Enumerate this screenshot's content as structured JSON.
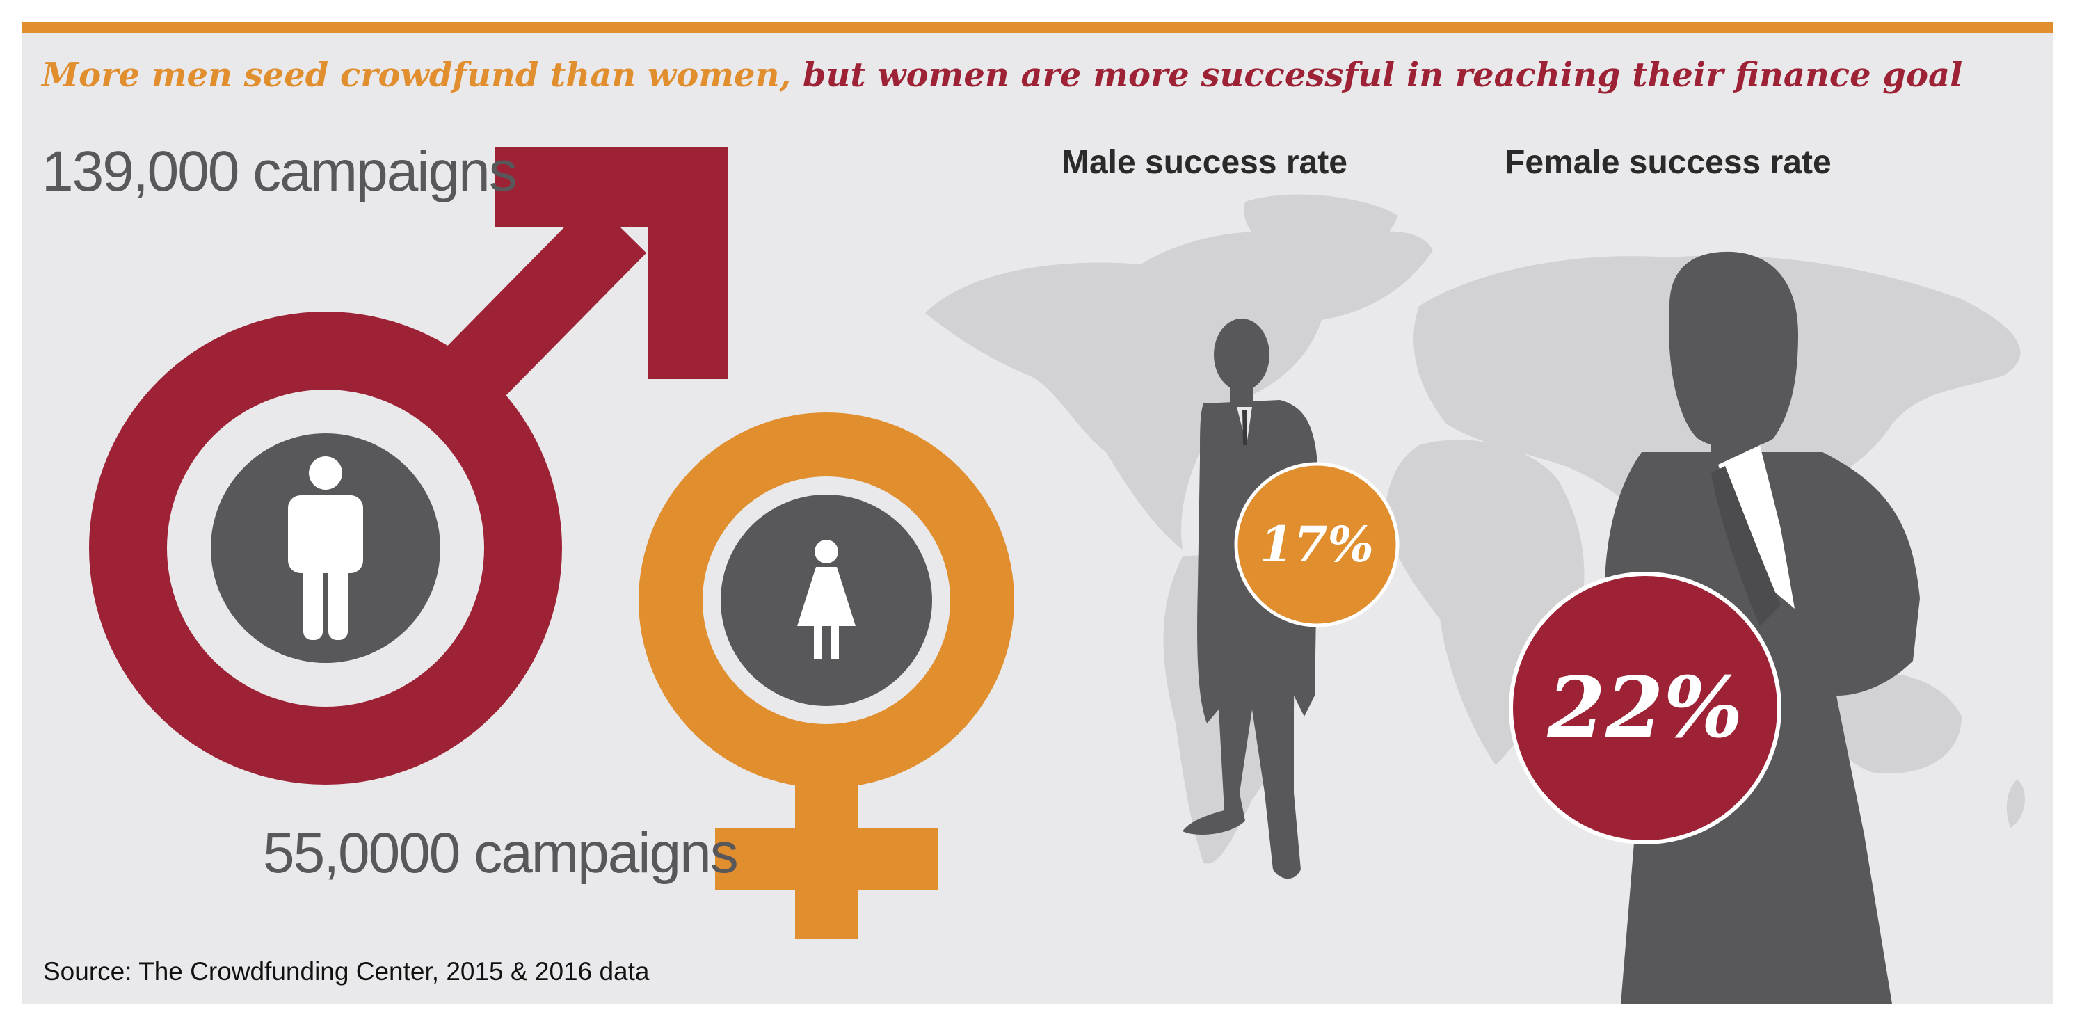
{
  "title": {
    "part1": "More men seed crowdfund than women,",
    "part2": "but women are more successful in reaching their finance goal"
  },
  "male": {
    "campaigns": "139,000 campaigns",
    "success_heading": "Male success rate",
    "success_rate": "17%"
  },
  "female": {
    "campaigns": "55,0000 campaigns",
    "success_heading": "Female success rate",
    "success_rate": "22%"
  },
  "source": "Source: The Crowdfunding Center, 2015 & 2016 data",
  "colors": {
    "male": "#9d2235",
    "female": "#e08e2e",
    "figure": "#58585a",
    "background": "#e9e9eb"
  },
  "icons": [
    "male-symbol-icon",
    "female-symbol-icon",
    "man-icon",
    "woman-icon",
    "world-map-icon",
    "businessman-silhouette-icon",
    "businesswoman-silhouette-icon"
  ]
}
